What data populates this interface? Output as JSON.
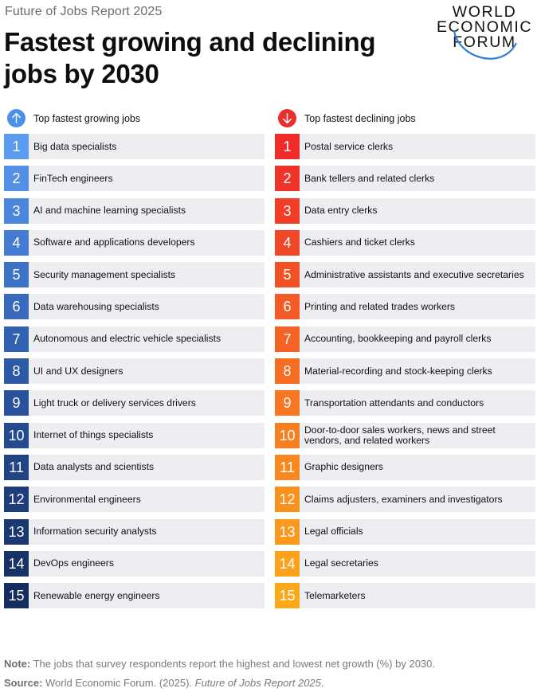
{
  "header": {
    "kicker": "Future of Jobs Report 2025",
    "title": "Fastest growing and declining jobs by 2030"
  },
  "logo": {
    "line1": "WORLD",
    "line2": "ECONOMIC",
    "line3": "FORUM"
  },
  "growing": {
    "heading": "Top fastest growing jobs",
    "icon": "arrow-up-icon",
    "icon_color": "#4a90e8",
    "items": [
      {
        "rank": "1",
        "label": "Big data specialists",
        "color": "#5b9cf0"
      },
      {
        "rank": "2",
        "label": "FinTech engineers",
        "color": "#5290e8"
      },
      {
        "rank": "3",
        "label": "AI and machine learning specialists",
        "color": "#4a86dd"
      },
      {
        "rank": "4",
        "label": "Software and applications developers",
        "color": "#437cd2"
      },
      {
        "rank": "5",
        "label": "Security management specialists",
        "color": "#3d73c7"
      },
      {
        "rank": "6",
        "label": "Data warehousing specialists",
        "color": "#376abc"
      },
      {
        "rank": "7",
        "label": "Autonomous and electric vehicle specialists",
        "color": "#3162b1"
      },
      {
        "rank": "8",
        "label": "UI and UX designers",
        "color": "#2c5aa6"
      },
      {
        "rank": "9",
        "label": "Light truck or delivery services drivers",
        "color": "#28529b"
      },
      {
        "rank": "10",
        "label": "Internet of things specialists",
        "color": "#244b90"
      },
      {
        "rank": "11",
        "label": "Data analysts and scientists",
        "color": "#214485"
      },
      {
        "rank": "12",
        "label": "Environmental engineers",
        "color": "#1e3e7b"
      },
      {
        "rank": "13",
        "label": "Information security analysts",
        "color": "#1b3871"
      },
      {
        "rank": "14",
        "label": "DevOps engineers",
        "color": "#183267"
      },
      {
        "rank": "15",
        "label": "Renewable energy engineers",
        "color": "#152c5e"
      }
    ]
  },
  "declining": {
    "heading": "Top fastest declining jobs",
    "icon": "arrow-down-icon",
    "icon_color": "#e8302c",
    "items": [
      {
        "rank": "1",
        "label": "Postal service clerks",
        "color": "#ee2d28"
      },
      {
        "rank": "2",
        "label": "Bank tellers and related clerks",
        "color": "#ef3528"
      },
      {
        "rank": "3",
        "label": "Data entry clerks",
        "color": "#f03e27"
      },
      {
        "rank": "4",
        "label": "Cashiers and ticket clerks",
        "color": "#f14726"
      },
      {
        "rank": "5",
        "label": "Administrative assistants and executive secretaries",
        "color": "#f25025"
      },
      {
        "rank": "6",
        "label": "Printing and related trades workers",
        "color": "#f35a24"
      },
      {
        "rank": "7",
        "label": "Accounting, bookkeeping and payroll clerks",
        "color": "#f46323"
      },
      {
        "rank": "8",
        "label": "Material-recording and stock-keeping clerks",
        "color": "#f56c22"
      },
      {
        "rank": "9",
        "label": "Transportation attendants and conductors",
        "color": "#f67621"
      },
      {
        "rank": "10",
        "label": "Door-to-door sales workers, news and street vendors, and related workers",
        "color": "#f77f20"
      },
      {
        "rank": "11",
        "label": "Graphic designers",
        "color": "#f8881f"
      },
      {
        "rank": "12",
        "label": "Claims adjusters, examiners and investigators",
        "color": "#f9911e"
      },
      {
        "rank": "13",
        "label": "Legal officials",
        "color": "#fa991d"
      },
      {
        "rank": "14",
        "label": "Legal secretaries",
        "color": "#fba11c"
      },
      {
        "rank": "15",
        "label": "Telemarketers",
        "color": "#fca81b"
      }
    ]
  },
  "footer": {
    "note_label": "Note:",
    "note_text": " The jobs that survey respondents report the highest and lowest net growth (%) by 2030.",
    "source_label": "Source:",
    "source_text": " World Economic Forum. (2025). ",
    "source_title": "Future of Jobs Report 2025",
    "source_end": "."
  }
}
